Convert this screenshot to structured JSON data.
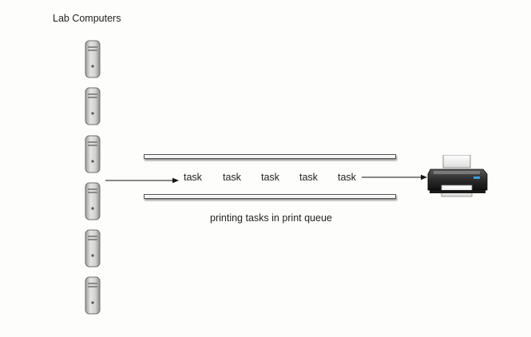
{
  "diagram": {
    "title": "Lab Computers",
    "computers": [
      {
        "icon": "desktop-tower-icon"
      },
      {
        "icon": "desktop-tower-icon"
      },
      {
        "icon": "desktop-tower-icon"
      },
      {
        "icon": "desktop-tower-icon"
      },
      {
        "icon": "desktop-tower-icon"
      },
      {
        "icon": "desktop-tower-icon"
      }
    ],
    "tasks": [
      "task",
      "task",
      "task",
      "task",
      "task"
    ],
    "queue_caption": "printing tasks in print queue",
    "printer": {
      "icon": "printer-icon"
    },
    "colors": {
      "arrow": "#111111",
      "tower_body": "#c9c9c9",
      "printer_body": "#2a2a2a"
    }
  }
}
